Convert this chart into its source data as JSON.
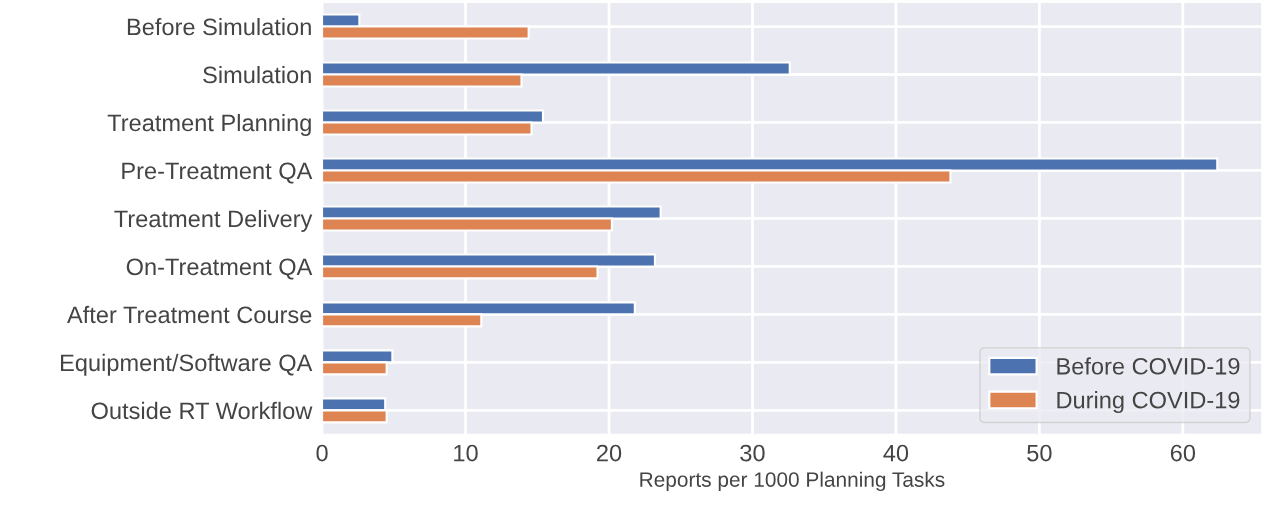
{
  "chart_data": {
    "type": "bar",
    "orientation": "horizontal",
    "xlabel": "Reports per 1000 Planning Tasks",
    "categories": [
      "Before Simulation",
      "Simulation",
      "Treatment Planning",
      "Pre-Treatment QA",
      "Treatment Delivery",
      "On-Treatment QA",
      "After Treatment Course",
      "Equipment/Software QA",
      "Outside RT Workflow"
    ],
    "series": [
      {
        "name": "Before COVID-19",
        "color": "#4c72b0",
        "values": [
          2.6,
          32.6,
          15.4,
          62.4,
          23.6,
          23.2,
          21.8,
          4.9,
          4.4
        ]
      },
      {
        "name": "During COVID-19",
        "color": "#dd8452",
        "values": [
          14.4,
          13.9,
          14.6,
          43.8,
          20.2,
          19.2,
          11.1,
          4.5,
          4.5
        ]
      }
    ],
    "xlim": [
      0,
      65.5
    ],
    "xticks": [
      0,
      10,
      20,
      30,
      40,
      50,
      60
    ],
    "grid": true,
    "legend": "bottom right"
  }
}
